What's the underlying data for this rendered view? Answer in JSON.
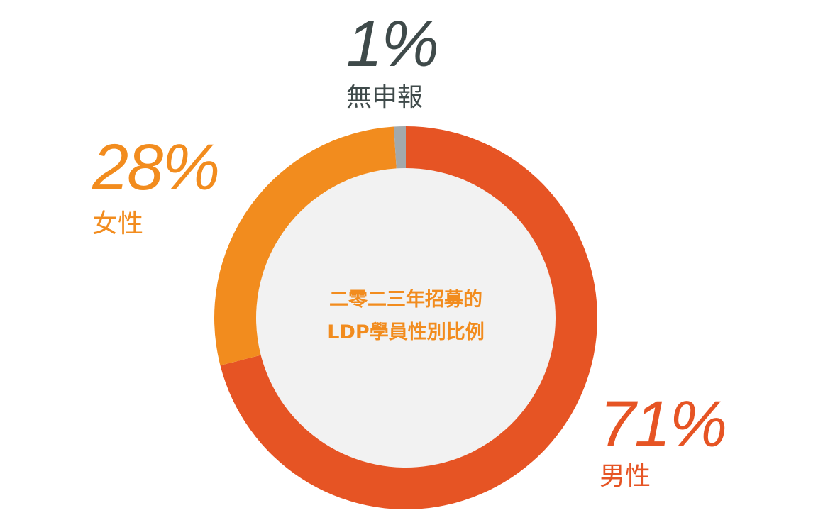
{
  "chart_data": {
    "type": "pie",
    "variant": "donut",
    "title_lines": [
      "二零二三年招募的",
      "LDP學員性別比例"
    ],
    "slices": [
      {
        "category": "男性",
        "value": 71,
        "value_label": "71%",
        "color": "#e65424"
      },
      {
        "category": "女性",
        "value": 28,
        "value_label": "28%",
        "color": "#f28c1e"
      },
      {
        "category": "無申報",
        "value": 1,
        "value_label": "1%",
        "color": "#a3a9ab"
      }
    ],
    "center_fill": "#f2f2f2",
    "legend": "none"
  }
}
